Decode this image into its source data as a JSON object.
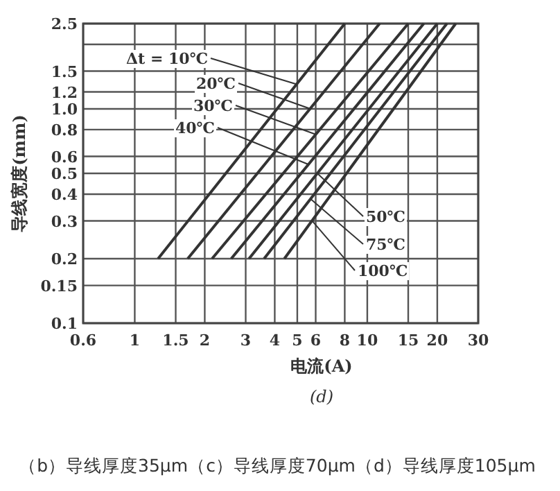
{
  "chart_data": {
    "type": "line",
    "xlabel": "电流(A)",
    "ylabel": "导线宽度(mm)",
    "log": "xy",
    "grid": true,
    "marker": "none",
    "line_style": "solid",
    "xlim": [
      0.6,
      30
    ],
    "ylim": [
      0.1,
      2.5
    ],
    "xticks": [
      0.6,
      1,
      1.5,
      2,
      3,
      4,
      5,
      6,
      8,
      10,
      15,
      20,
      30
    ],
    "yticks": [
      0.1,
      0.15,
      0.2,
      0.3,
      0.4,
      0.5,
      0.6,
      0.8,
      {
        "value": 1,
        "label": "1.0"
      },
      1.2,
      1.5,
      {
        "value": 2,
        "label": null
      },
      2.5
    ],
    "series": [
      {
        "color": "#333333",
        "x": [
          1.26,
          8
        ],
        "values": [
          0.2,
          2.5
        ]
      },
      {
        "color": "#333333",
        "x": [
          1.69,
          11.3
        ],
        "values": [
          0.2,
          2.5
        ]
      },
      {
        "color": "#333333",
        "x": [
          2.15,
          15
        ],
        "values": [
          0.2,
          2.5
        ]
      },
      {
        "color": "#333333",
        "x": [
          2.6,
          17.5
        ],
        "values": [
          0.2,
          2.5
        ]
      },
      {
        "color": "#333333",
        "x": [
          3.1,
          20
        ],
        "values": [
          0.2,
          2.5
        ]
      },
      {
        "color": "#333333",
        "x": [
          3.6,
          22
        ],
        "values": [
          0.2,
          2.5
        ]
      },
      {
        "color": "#333333",
        "x": [
          4.4,
          24
        ],
        "values": [
          0.2,
          2.5
        ]
      }
    ],
    "annotations": [
      {
        "text": "Δt = 10℃",
        "x": 5,
        "y": 1.3
      },
      {
        "text": "20℃",
        "x": 5.7,
        "y": 1.0
      },
      {
        "text": "30℃",
        "x": 6,
        "y": 0.76
      },
      {
        "text": "40℃",
        "x": 5.6,
        "y": 0.55
      },
      {
        "text": "50℃",
        "x": 6.1,
        "y": 0.5
      },
      {
        "text": "75℃",
        "x": 5.7,
        "y": 0.38
      },
      {
        "text": "100℃",
        "x": 5.8,
        "y": 0.3
      },
      "(d)",
      "（b）导线厚度35μm（c）导线厚度70μm（d）导线厚度105μm"
    ]
  }
}
